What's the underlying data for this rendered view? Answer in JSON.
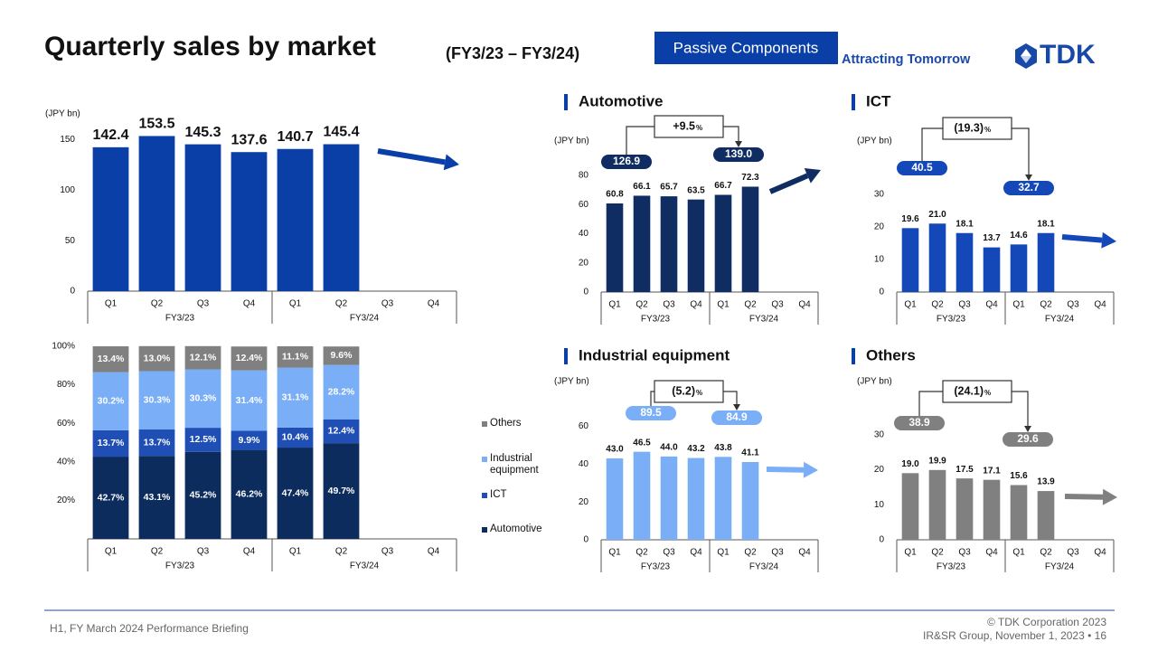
{
  "header": {
    "title": "Quarterly sales by market",
    "subtitle": "(FY3/23 – FY3/24)",
    "badge": "Passive Components",
    "tagline": "Attracting Tomorrow",
    "logo": "TDK"
  },
  "footer": {
    "left": "H1, FY March 2024 Performance Briefing",
    "copyright": "© TDK Corporation 2023",
    "group": "IR&SR Group, November 1, 2023 • 16"
  },
  "chart_data": [
    {
      "type": "bar",
      "unit": "(JPY bn)",
      "color": "#0a3fa8",
      "categories": [
        "Q1",
        "Q2",
        "Q3",
        "Q4",
        "Q1",
        "Q2",
        "Q3",
        "Q4"
      ],
      "groups": [
        "FY3/23",
        "FY3/24"
      ],
      "values": [
        142.4,
        153.5,
        145.3,
        137.6,
        140.7,
        145.4,
        null,
        null
      ],
      "value_labels": [
        "142.4",
        "153.5",
        "145.3",
        "137.6",
        "140.7",
        "145.4",
        null,
        null
      ],
      "ylim": [
        0,
        170
      ],
      "yticks": [
        0,
        50,
        100,
        150
      ]
    },
    {
      "type": "stacked_bar",
      "categories": [
        "Q1",
        "Q2",
        "Q3",
        "Q4",
        "Q1",
        "Q2",
        "Q3",
        "Q4"
      ],
      "groups": [
        "FY3/23",
        "FY3/24"
      ],
      "series": [
        {
          "name": "Automotive",
          "color": "#0d2c5e",
          "values": [
            42.7,
            43.1,
            45.2,
            46.2,
            47.4,
            49.7,
            null,
            null
          ],
          "value_labels": [
            "42.7%",
            "43.1%",
            "45.2%",
            "46.2%",
            "47.4%",
            "49.7%",
            null,
            null
          ]
        },
        {
          "name": "ICT",
          "color": "#1f4fb4",
          "values": [
            13.7,
            13.7,
            12.5,
            9.9,
            10.4,
            12.4,
            null,
            null
          ],
          "value_labels": [
            "13.7%",
            "13.7%",
            "12.5%",
            "9.9%",
            "10.4%",
            "12.4%",
            null,
            null
          ]
        },
        {
          "name": "Industrial equipment",
          "color": "#7aaef7",
          "values": [
            30.2,
            30.3,
            30.3,
            31.4,
            31.1,
            28.2,
            null,
            null
          ],
          "value_labels": [
            "30.2%",
            "30.3%",
            "30.3%",
            "31.4%",
            "31.1%",
            "28.2%",
            null,
            null
          ]
        },
        {
          "name": "Others",
          "color": "#808080",
          "values": [
            13.4,
            13.0,
            12.1,
            12.4,
            11.1,
            9.6,
            null,
            null
          ],
          "value_labels": [
            "13.4%",
            "13.0%",
            "12.1%",
            "12.4%",
            "11.1%",
            "9.6%",
            null,
            null
          ]
        }
      ],
      "ylim": [
        0,
        100
      ],
      "yticks": [
        {
          "value": 20,
          "label": "20%"
        },
        {
          "value": 40,
          "label": "40%"
        },
        {
          "value": 60,
          "label": "60%"
        },
        {
          "value": 80,
          "label": "80%"
        },
        {
          "value": 100,
          "label": "100%"
        }
      ]
    },
    {
      "type": "bar",
      "title": "Automotive",
      "unit": "(JPY bn)",
      "color": "#0f2d62",
      "categories": [
        "Q1",
        "Q2",
        "Q3",
        "Q4",
        "Q1",
        "Q2",
        "Q3",
        "Q4"
      ],
      "groups": [
        "FY3/23",
        "FY3/24"
      ],
      "values": [
        60.8,
        66.1,
        65.7,
        63.5,
        66.7,
        72.3,
        null,
        null
      ],
      "value_labels": [
        "60.8",
        "66.1",
        "65.7",
        "63.5",
        "66.7",
        "72.3",
        null,
        null
      ],
      "ylim": [
        0,
        85
      ],
      "yticks": [
        0,
        20,
        40,
        60,
        80
      ],
      "annotations": {
        "from": "126.9",
        "to": "139.0",
        "change": "+9.5",
        "change_unit": "%"
      }
    },
    {
      "type": "bar",
      "title": "ICT",
      "unit": "(JPY bn)",
      "color": "#1448b8",
      "categories": [
        "Q1",
        "Q2",
        "Q3",
        "Q4",
        "Q1",
        "Q2",
        "Q3",
        "Q4"
      ],
      "groups": [
        "FY3/23",
        "FY3/24"
      ],
      "values": [
        19.6,
        21.0,
        18.1,
        13.7,
        14.6,
        18.1,
        null,
        null
      ],
      "value_labels": [
        "19.6",
        "21.0",
        "18.1",
        "13.7",
        "14.6",
        "18.1",
        null,
        null
      ],
      "ylim": [
        0,
        33
      ],
      "yticks": [
        0,
        10,
        20,
        30
      ],
      "annotations": {
        "from": "40.5",
        "to": "32.7",
        "change": "(19.3)",
        "change_unit": "%"
      }
    },
    {
      "type": "bar",
      "title": "Industrial equipment",
      "unit": "(JPY bn)",
      "color": "#7aaef7",
      "categories": [
        "Q1",
        "Q2",
        "Q3",
        "Q4",
        "Q1",
        "Q2",
        "Q3",
        "Q4"
      ],
      "groups": [
        "FY3/23",
        "FY3/24"
      ],
      "values": [
        43.0,
        46.5,
        44.0,
        43.2,
        43.8,
        41.1,
        null,
        null
      ],
      "value_labels": [
        "43.0",
        "46.5",
        "44.0",
        "43.2",
        "43.8",
        "41.1",
        null,
        null
      ],
      "ylim": [
        0,
        64
      ],
      "yticks": [
        0,
        20,
        40,
        60
      ],
      "annotations": {
        "from": "89.5",
        "to": "84.9",
        "change": "(5.2)",
        "change_unit": "%"
      }
    },
    {
      "type": "bar",
      "title": "Others",
      "unit": "(JPY bn)",
      "color": "#808080",
      "categories": [
        "Q1",
        "Q2",
        "Q3",
        "Q4",
        "Q1",
        "Q2",
        "Q3",
        "Q4"
      ],
      "groups": [
        "FY3/23",
        "FY3/24"
      ],
      "values": [
        19.0,
        19.9,
        17.5,
        17.1,
        15.6,
        13.9,
        null,
        null
      ],
      "value_labels": [
        "19.0",
        "19.9",
        "17.5",
        "17.1",
        "15.6",
        "13.9",
        null,
        null
      ],
      "ylim": [
        0,
        33
      ],
      "yticks": [
        0,
        10,
        20,
        30
      ],
      "annotations": {
        "from": "38.9",
        "to": "29.6",
        "change": "(24.1)",
        "change_unit": "%"
      }
    }
  ]
}
